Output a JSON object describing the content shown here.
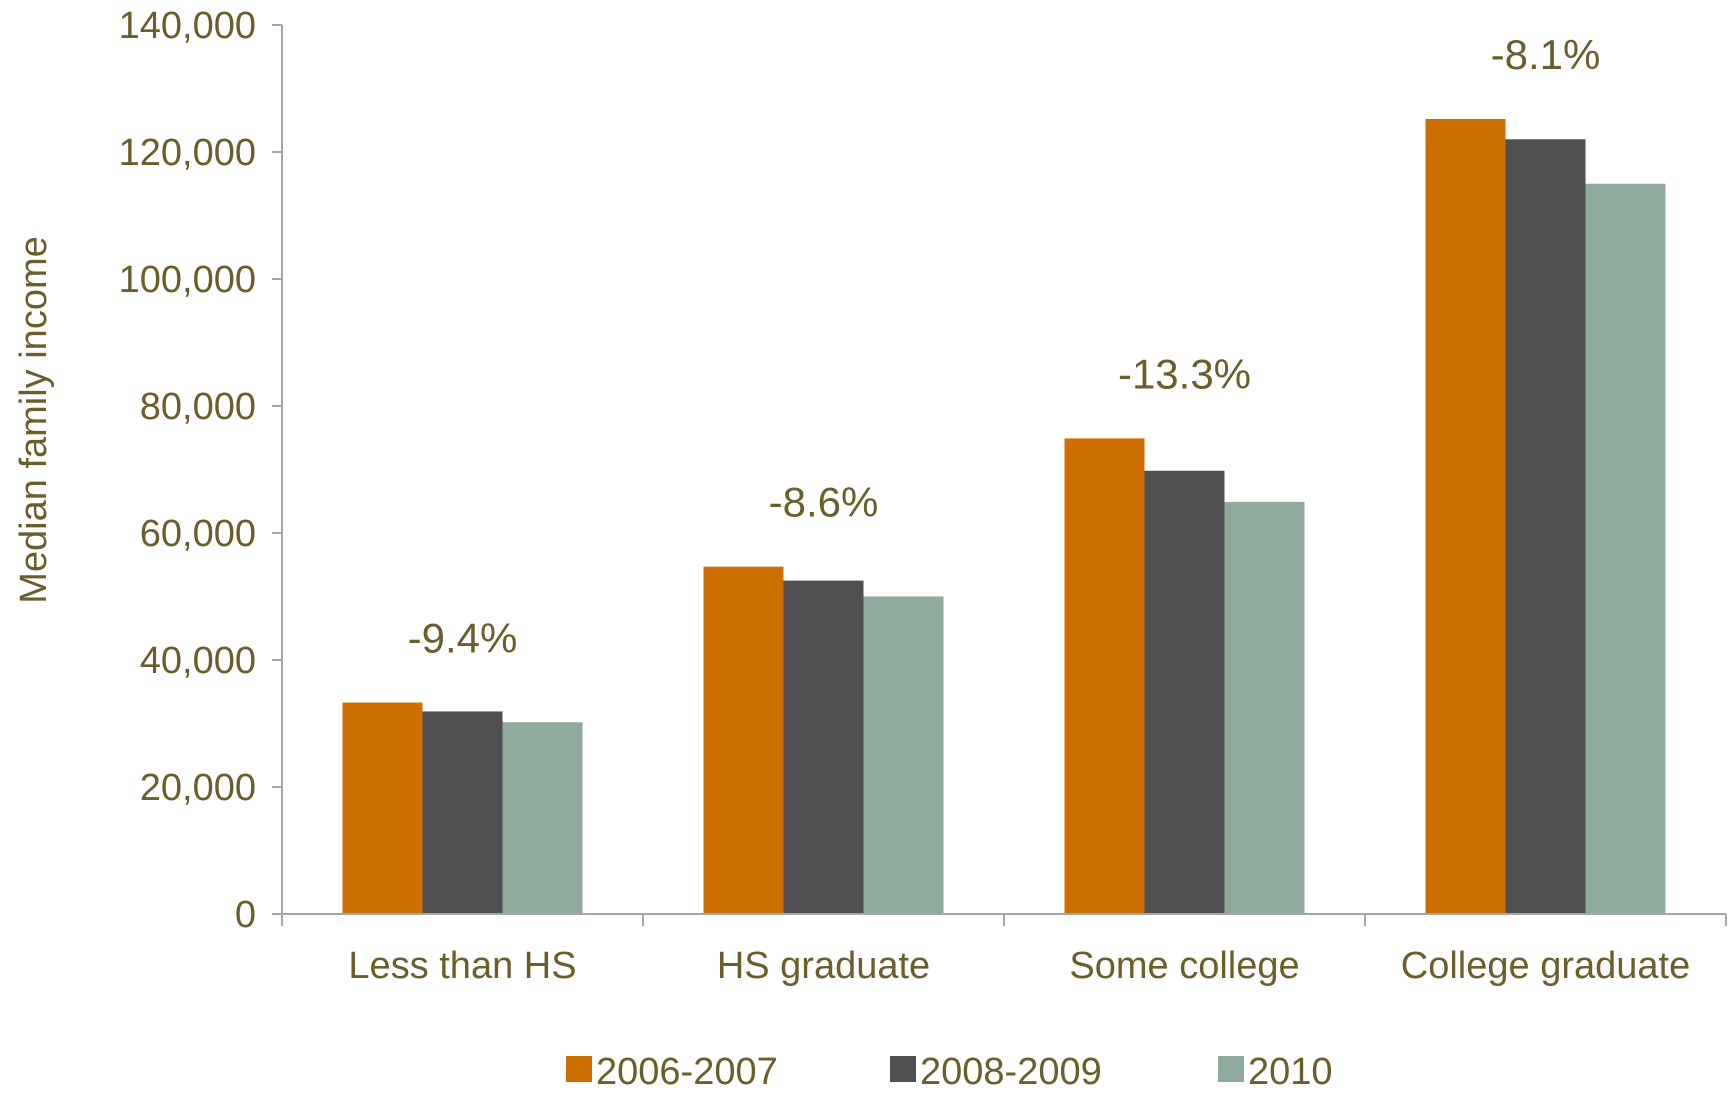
{
  "chart_data": {
    "type": "bar",
    "title": "",
    "xlabel": "",
    "ylabel": "Median family income",
    "ylim": [
      0,
      140000
    ],
    "yticks": [
      0,
      20000,
      40000,
      60000,
      80000,
      100000,
      120000,
      140000
    ],
    "ytick_labels": [
      "0",
      "20,000",
      "40,000",
      "60,000",
      "80,000",
      "100,000",
      "120,000",
      "140,000"
    ],
    "grid": false,
    "legend_position": "bottom",
    "categories": [
      "Less than HS",
      "HS graduate",
      "Some college",
      "College graduate"
    ],
    "series": [
      {
        "name": "2006-2007",
        "color": "#cc6f00",
        "values": [
          33300,
          54700,
          74900,
          125200
        ]
      },
      {
        "name": "2008-2009",
        "color": "#505052",
        "values": [
          31900,
          52500,
          69800,
          122000
        ]
      },
      {
        "name": "2010",
        "color": "#8eaa9c",
        "values": [
          30200,
          50000,
          64900,
          115000
        ]
      }
    ],
    "annotations": [
      "-9.4%",
      "-8.6%",
      "-13.3%",
      "-8.1%"
    ],
    "axis_color": "#a6a6a6",
    "text_color": "#6b5e2a"
  }
}
